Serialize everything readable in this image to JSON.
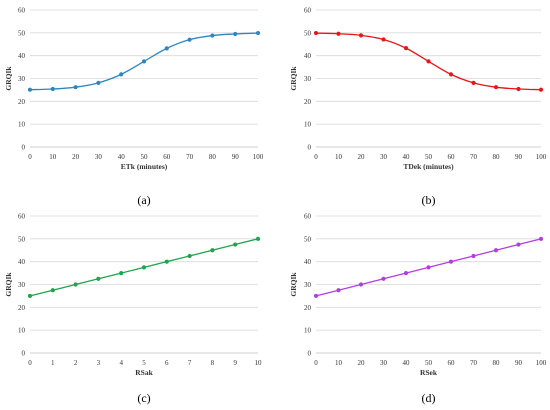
{
  "chart_data": [
    {
      "type": "line",
      "caption": "(a)",
      "xlabel": "ETk (minutes)",
      "ylabel": "GRQIk",
      "color": "#2e86c1",
      "xlim": [
        0,
        100
      ],
      "ylim": [
        0,
        60
      ],
      "x_ticks": [
        0,
        10,
        20,
        30,
        40,
        50,
        60,
        70,
        80,
        90,
        100
      ],
      "y_ticks": [
        0,
        10,
        20,
        30,
        40,
        50,
        60
      ],
      "grid": true,
      "x": [
        0,
        10,
        20,
        30,
        40,
        50,
        60,
        70,
        80,
        90,
        100
      ],
      "y": [
        25.1,
        25.4,
        26.2,
        28.1,
        31.8,
        37.5,
        43.2,
        47.0,
        48.8,
        49.5,
        49.9
      ]
    },
    {
      "type": "line",
      "caption": "(b)",
      "xlabel": "TDek (minutes)",
      "ylabel": "GRQIk",
      "color": "#e8161b",
      "xlim": [
        0,
        100
      ],
      "ylim": [
        0,
        60
      ],
      "x_ticks": [
        0,
        10,
        20,
        30,
        40,
        50,
        60,
        70,
        80,
        90,
        100
      ],
      "y_ticks": [
        0,
        10,
        20,
        30,
        40,
        50,
        60
      ],
      "grid": true,
      "x": [
        0,
        10,
        20,
        30,
        40,
        50,
        60,
        70,
        80,
        90,
        100
      ],
      "y": [
        49.9,
        49.6,
        48.9,
        47.1,
        43.3,
        37.5,
        31.8,
        28.1,
        26.2,
        25.4,
        25.1
      ]
    },
    {
      "type": "line",
      "caption": "(c)",
      "xlabel": "RSak",
      "ylabel": "GRQIk",
      "color": "#1aa64a",
      "xlim": [
        0,
        10
      ],
      "ylim": [
        0,
        60
      ],
      "x_ticks": [
        0,
        1,
        2,
        3,
        4,
        5,
        6,
        7,
        8,
        9,
        10
      ],
      "y_ticks": [
        0,
        10,
        20,
        30,
        40,
        50,
        60
      ],
      "grid": true,
      "x": [
        0,
        1,
        2,
        3,
        4,
        5,
        6,
        7,
        8,
        9,
        10
      ],
      "y": [
        25,
        27.5,
        30,
        32.5,
        35,
        37.5,
        40,
        42.5,
        45,
        47.5,
        50
      ]
    },
    {
      "type": "line",
      "caption": "(d)",
      "xlabel": "RSek",
      "ylabel": "GRQIk",
      "color": "#b23ee0",
      "xlim": [
        0,
        100
      ],
      "ylim": [
        0,
        60
      ],
      "x_ticks": [
        0,
        10,
        20,
        30,
        40,
        50,
        60,
        70,
        80,
        90,
        100
      ],
      "y_ticks": [
        0,
        10,
        20,
        30,
        40,
        50,
        60
      ],
      "grid": true,
      "x": [
        0,
        10,
        20,
        30,
        40,
        50,
        60,
        70,
        80,
        90,
        100
      ],
      "y": [
        25,
        27.5,
        30,
        32.5,
        35,
        37.5,
        40,
        42.5,
        45,
        47.5,
        50
      ]
    }
  ]
}
